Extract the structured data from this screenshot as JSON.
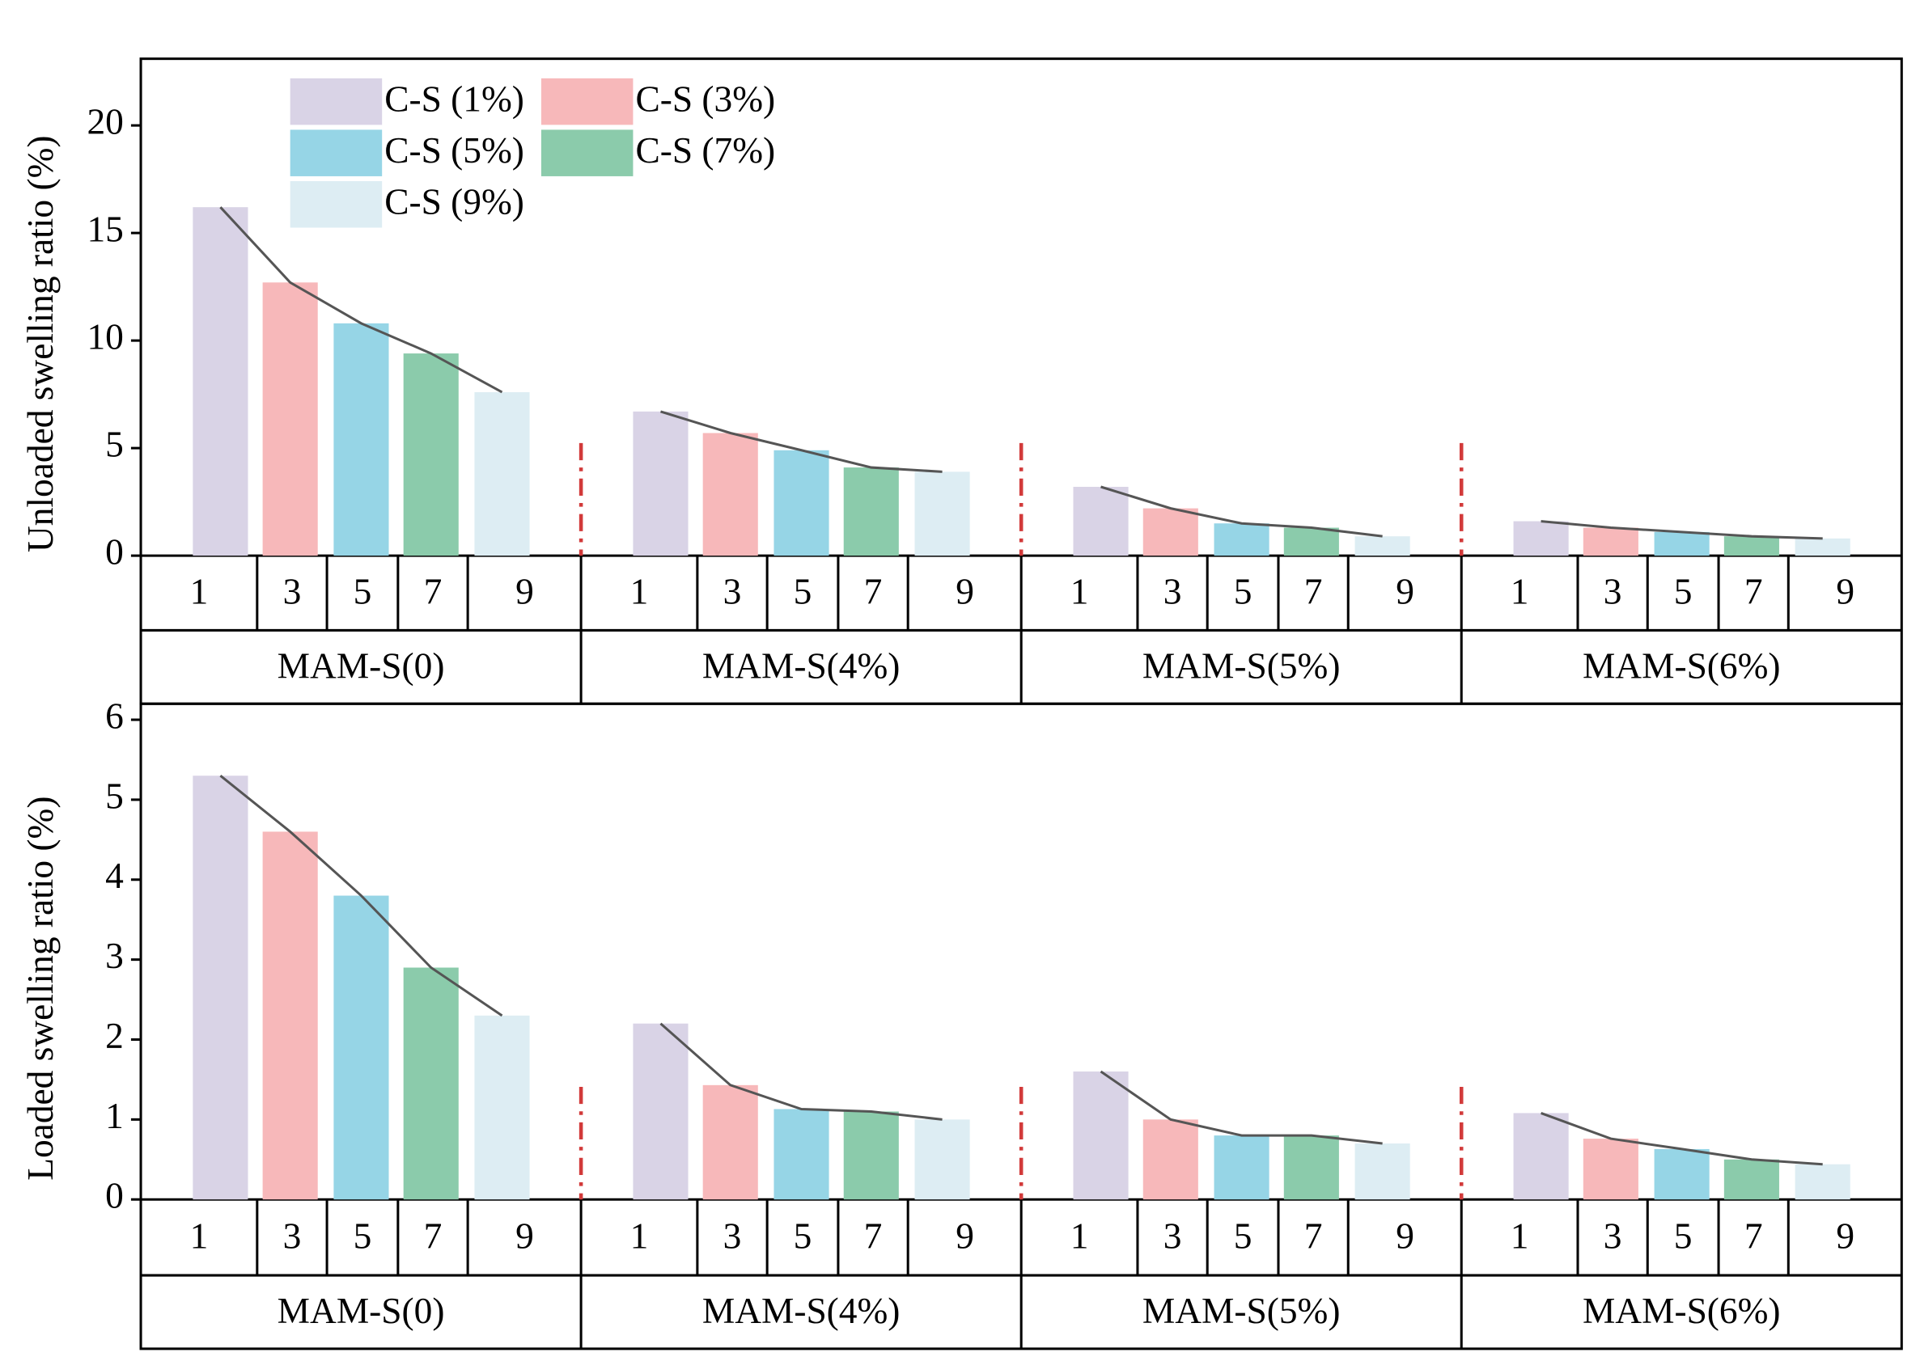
{
  "chart_data": [
    {
      "type": "bar",
      "ylabel": "Unloaded swelling ratio (%)",
      "categories": [
        "MAM-S(0)",
        "MAM-S(4%)",
        "MAM-S(5%)",
        "MAM-S(6%)"
      ],
      "sub_categories": [
        1,
        3,
        5,
        7,
        9
      ],
      "series": [
        {
          "name": "C-S (1%)",
          "color": "#d9d3e6",
          "values": [
            16.2,
            6.7,
            3.2,
            1.6
          ]
        },
        {
          "name": "C-S (3%)",
          "color": "#f7b8ba",
          "values": [
            12.7,
            5.7,
            2.2,
            1.3
          ]
        },
        {
          "name": "C-S (5%)",
          "color": "#96d5e6",
          "values": [
            10.8,
            4.9,
            1.5,
            1.1
          ]
        },
        {
          "name": "C-S (7%)",
          "color": "#8bcbab",
          "values": [
            9.4,
            4.1,
            1.3,
            0.9
          ]
        },
        {
          "name": "C-S (9%)",
          "color": "#ddedf3",
          "values": [
            7.6,
            3.9,
            0.9,
            0.8
          ]
        }
      ],
      "ylim": [
        0,
        23.1
      ],
      "yticks": [
        0,
        5,
        10,
        15,
        20
      ]
    },
    {
      "type": "bar",
      "ylabel": "Loaded swelling ratio (%)",
      "categories": [
        "MAM-S(0)",
        "MAM-S(4%)",
        "MAM-S(5%)",
        "MAM-S(6%)"
      ],
      "sub_categories": [
        1,
        3,
        5,
        7,
        9
      ],
      "series": [
        {
          "color": "#d9d3e6",
          "values": [
            5.3,
            2.2,
            1.6,
            1.08
          ]
        },
        {
          "color": "#f7b8ba",
          "values": [
            4.6,
            1.43,
            1.0,
            0.76
          ]
        },
        {
          "color": "#96d5e6",
          "values": [
            3.8,
            1.13,
            0.8,
            0.63
          ]
        },
        {
          "color": "#8bcbab",
          "values": [
            2.9,
            1.1,
            0.8,
            0.5
          ]
        },
        {
          "color": "#ddedf3",
          "values": [
            2.3,
            1.0,
            0.7,
            0.44
          ]
        }
      ],
      "ylim": [
        0,
        6.2
      ],
      "yticks": [
        0,
        1,
        2,
        3,
        4,
        5,
        6
      ]
    }
  ]
}
